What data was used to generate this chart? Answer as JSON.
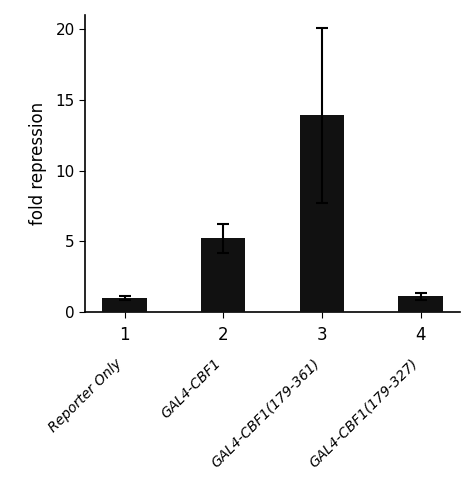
{
  "categories": [
    "1",
    "2",
    "3",
    "4"
  ],
  "x_labels": [
    "Reporter Only",
    "GAL4-CBF1",
    "GAL4-CBF1(179-361)",
    "GAL4-CBF1(179-327)"
  ],
  "values": [
    1.0,
    5.2,
    13.9,
    1.1
  ],
  "errors": [
    0.15,
    1.0,
    6.2,
    0.25
  ],
  "bar_color": "#111111",
  "ylabel": "fold repression",
  "ylim": [
    0,
    21
  ],
  "yticks": [
    0,
    5,
    10,
    15,
    20
  ],
  "bar_width": 0.45,
  "figsize": [
    4.74,
    5.03
  ],
  "dpi": 100
}
